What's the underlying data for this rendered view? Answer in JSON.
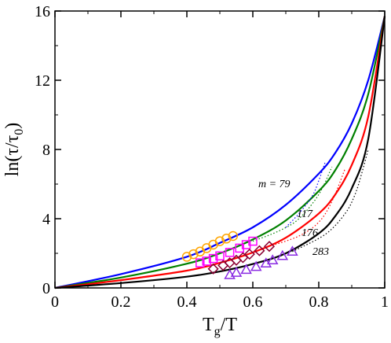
{
  "chart_data": {
    "type": "line",
    "title": "",
    "xlabel": "T_g/T",
    "ylabel": "ln(τ/τ_0)",
    "xlim": [
      0,
      1
    ],
    "ylim": [
      0,
      16
    ],
    "x_ticks": [
      "0",
      "0.2",
      "0.4",
      "0.6",
      "0.8",
      "1"
    ],
    "y_ticks": [
      "0",
      "4",
      "8",
      "12",
      "16"
    ],
    "grid": false,
    "legend": "none",
    "annotations": [
      {
        "text": "m = 79",
        "series": "m = 79"
      },
      {
        "text": "117",
        "series": "117"
      },
      {
        "text": "176",
        "series": "176"
      },
      {
        "text": "283",
        "series": "283"
      }
    ],
    "series": [
      {
        "name": "m = 79",
        "color": "#0000ff",
        "marker": "circle",
        "marker_color": "#ffa500",
        "x": [
          0,
          0.2,
          0.4,
          0.5,
          0.6,
          0.7,
          0.8,
          0.85,
          0.9,
          0.95,
          1.0
        ],
        "y": [
          0,
          0.8,
          1.8,
          2.6,
          3.5,
          4.8,
          6.6,
          7.8,
          9.5,
          12.0,
          15.7
        ],
        "points_x": [
          0.4,
          0.42,
          0.44,
          0.46,
          0.48,
          0.5,
          0.52,
          0.54
        ],
        "points_y": [
          1.8,
          1.95,
          2.1,
          2.3,
          2.5,
          2.7,
          2.85,
          3.0
        ],
        "dotted_x": [
          0.7,
          0.74,
          0.78,
          0.8,
          0.82
        ],
        "dotted_y": [
          3.5,
          4.3,
          5.3,
          6.2,
          7.3
        ]
      },
      {
        "name": "117",
        "color": "#008000",
        "marker": "square",
        "marker_color": "#ff00ff",
        "x": [
          0,
          0.2,
          0.4,
          0.5,
          0.6,
          0.7,
          0.8,
          0.85,
          0.9,
          0.95,
          1.0
        ],
        "y": [
          0,
          0.6,
          1.4,
          2.0,
          2.8,
          3.9,
          5.6,
          6.8,
          8.6,
          11.2,
          15.7
        ],
        "points_x": [
          0.44,
          0.46,
          0.48,
          0.5,
          0.53,
          0.56,
          0.58,
          0.6
        ],
        "points_y": [
          1.45,
          1.55,
          1.7,
          1.85,
          2.05,
          2.3,
          2.5,
          2.7
        ],
        "dotted_x": [
          0.6,
          0.68,
          0.74,
          0.8,
          0.84
        ],
        "dotted_y": [
          2.7,
          3.3,
          4.0,
          5.4,
          7.0
        ]
      },
      {
        "name": "176",
        "color": "#ff0000",
        "marker": "diamond",
        "marker_color": "#8b0033",
        "x": [
          0,
          0.2,
          0.4,
          0.5,
          0.6,
          0.7,
          0.8,
          0.85,
          0.9,
          0.95,
          1.0
        ],
        "y": [
          0,
          0.45,
          1.0,
          1.45,
          2.05,
          2.9,
          4.3,
          5.4,
          7.1,
          9.9,
          15.7
        ],
        "points_x": [
          0.48,
          0.51,
          0.53,
          0.55,
          0.57,
          0.59,
          0.62,
          0.65
        ],
        "points_y": [
          1.1,
          1.3,
          1.45,
          1.6,
          1.75,
          1.95,
          2.15,
          2.4
        ],
        "dotted_x": [
          0.65,
          0.74,
          0.8,
          0.84,
          0.88
        ],
        "dotted_y": [
          2.4,
          3.0,
          3.8,
          5.0,
          6.9
        ]
      },
      {
        "name": "283",
        "color": "#000000",
        "marker": "triangle",
        "marker_color": "#8a2be2",
        "x": [
          0,
          0.2,
          0.4,
          0.5,
          0.6,
          0.7,
          0.8,
          0.85,
          0.9,
          0.95,
          1.0
        ],
        "y": [
          0,
          0.28,
          0.65,
          0.95,
          1.38,
          2.0,
          3.15,
          4.15,
          5.75,
          8.6,
          15.7
        ],
        "points_x": [
          0.53,
          0.55,
          0.58,
          0.61,
          0.64,
          0.66,
          0.69,
          0.72
        ],
        "points_y": [
          0.75,
          0.88,
          1.05,
          1.22,
          1.42,
          1.6,
          1.85,
          2.1
        ],
        "dotted_x": [
          0.72,
          0.82,
          0.88,
          0.91,
          0.93,
          0.95
        ],
        "dotted_y": [
          2.1,
          3.1,
          4.3,
          5.4,
          6.6,
          8.0
        ]
      }
    ]
  }
}
